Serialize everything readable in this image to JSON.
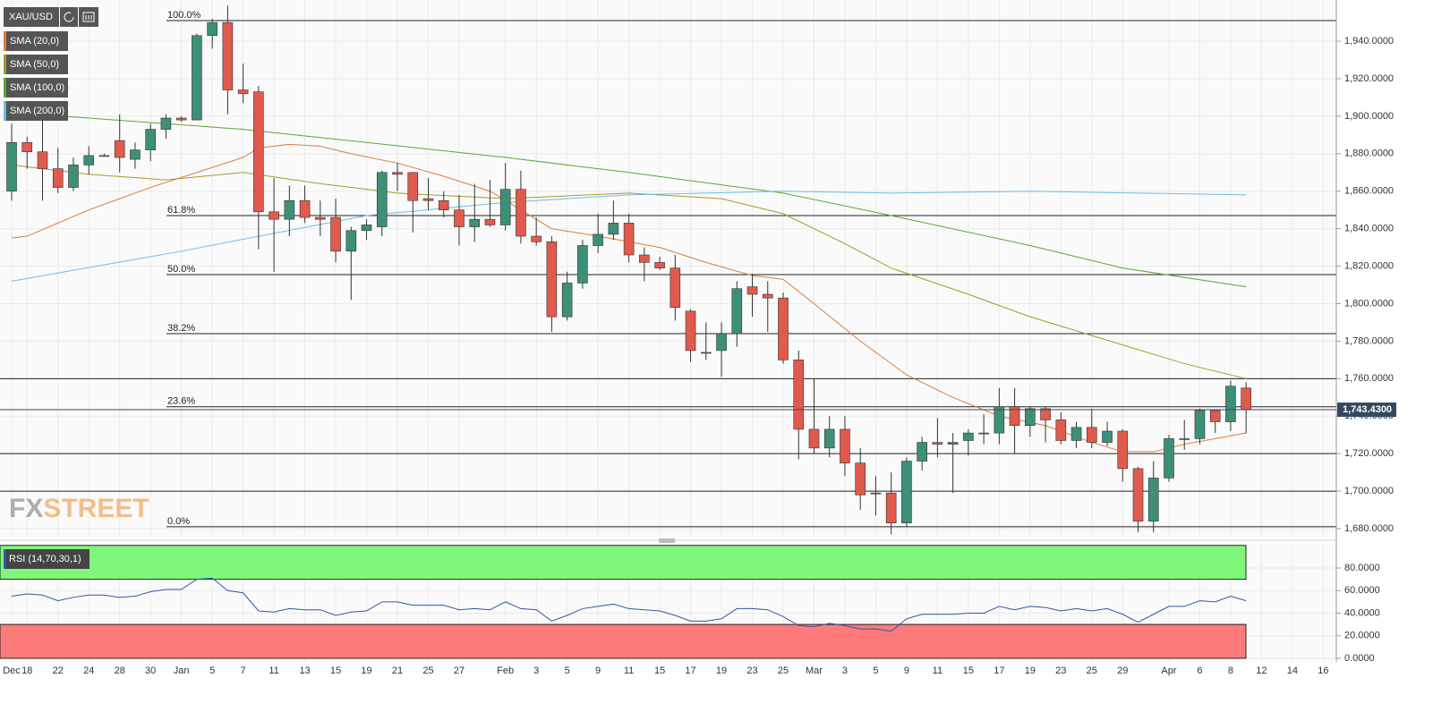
{
  "logo": {
    "fx": "FX",
    "street": "STREET"
  },
  "chart_data": [
    {
      "type": "candlestick",
      "title": "XAU/USD",
      "categories": [
        "Dec",
        "18",
        null,
        "22",
        null,
        "24",
        null,
        "28",
        null,
        "30",
        null,
        "Jan",
        null,
        "5",
        null,
        "7",
        null,
        "11",
        null,
        "13",
        null,
        "15",
        null,
        "19",
        null,
        "21",
        null,
        "25",
        null,
        "27",
        null,
        null,
        "Feb",
        null,
        "3",
        null,
        "5",
        null,
        "9",
        null,
        "11",
        null,
        "15",
        null,
        "17",
        null,
        "19",
        null,
        "23",
        null,
        "25",
        null,
        "Mar",
        null,
        "3",
        null,
        "5",
        null,
        "9",
        null,
        "11",
        null,
        "15",
        null,
        "17",
        null,
        "19",
        null,
        "23",
        null,
        "25",
        null,
        "29",
        null,
        null,
        "Apr",
        null,
        "6",
        null,
        "8",
        null,
        "12",
        null,
        "14",
        null,
        "16"
      ],
      "open": [
        1860,
        1886,
        1881,
        1872,
        1862,
        1874,
        1879,
        1887,
        1877,
        1882,
        1893,
        1899,
        1898,
        1943,
        1950,
        1914,
        1913,
        1849,
        1845,
        1855,
        1846,
        1846,
        1828,
        1839,
        1841,
        1870,
        1870,
        1856,
        1855,
        1850,
        1841,
        1845,
        1842,
        1861,
        1836,
        1833,
        1793,
        1811,
        1831,
        1837,
        1843,
        1826,
        1822,
        1819,
        1796,
        1774,
        1775,
        1784,
        1809,
        1805,
        1803,
        1770,
        1733,
        1723,
        1733,
        1715,
        1699,
        1699,
        1683,
        1716,
        1726,
        1725,
        1727,
        1731,
        1731,
        1745,
        1735,
        1744,
        1738,
        1727,
        1734,
        1726,
        1732,
        1712,
        1684,
        1707,
        1728,
        1728,
        1743,
        1737,
        1755,
        null,
        null,
        null,
        null,
        null
      ],
      "high": [
        1896,
        1889,
        1907,
        1883,
        1878,
        1884,
        1880,
        1901,
        1886,
        1896,
        1901,
        1900,
        1944,
        1952,
        1959,
        1928,
        1916,
        1867,
        1863,
        1863,
        1855,
        1856,
        1841,
        1845,
        1871,
        1875,
        1870,
        1867,
        1860,
        1858,
        1864,
        1866,
        1875,
        1871,
        1846,
        1836,
        1817,
        1834,
        1848,
        1855,
        1848,
        1830,
        1825,
        1826,
        1797,
        1790,
        1790,
        1812,
        1816,
        1812,
        1806,
        1775,
        1760,
        1740,
        1740,
        1723,
        1708,
        1710,
        1718,
        1729,
        1739,
        1731,
        1733,
        1741,
        1755,
        1755,
        1745,
        1745,
        1742,
        1737,
        1744,
        1737,
        1733,
        1713,
        1716,
        1730,
        1738,
        1744,
        1742,
        1759,
        1758,
        null,
        null,
        null,
        null,
        null
      ],
      "low": [
        1855,
        1872,
        1855,
        1859,
        1860,
        1869,
        1879,
        1870,
        1872,
        1876,
        1888,
        1897,
        1898,
        1936,
        1901,
        1907,
        1829,
        1817,
        1836,
        1843,
        1836,
        1822,
        1802,
        1834,
        1836,
        1860,
        1838,
        1850,
        1846,
        1831,
        1833,
        1841,
        1839,
        1832,
        1831,
        1785,
        1791,
        1808,
        1827,
        1834,
        1822,
        1812,
        1818,
        1791,
        1769,
        1770,
        1761,
        1777,
        1793,
        1785,
        1768,
        1717,
        1720,
        1718,
        1708,
        1690,
        1687,
        1677,
        1681,
        1711,
        1718,
        1699,
        1719,
        1725,
        1725,
        1720,
        1729,
        1726,
        1725,
        1723,
        1723,
        1724,
        1705,
        1678,
        1678,
        1705,
        1722,
        1725,
        1731,
        1732,
        1731,
        null,
        null,
        null,
        null,
        null
      ],
      "close": [
        1886,
        1881,
        1872,
        1862,
        1874,
        1879,
        1879,
        1878,
        1882,
        1893,
        1899,
        1898,
        1943,
        1950,
        1914,
        1912,
        1849,
        1845,
        1855,
        1846,
        1845,
        1828,
        1839,
        1842,
        1870,
        1869,
        1855,
        1855,
        1850,
        1841,
        1845,
        1842,
        1861,
        1836,
        1833,
        1793,
        1811,
        1831,
        1837,
        1843,
        1826,
        1822,
        1819,
        1798,
        1775,
        1774,
        1784,
        1808,
        1805,
        1803,
        1770,
        1733,
        1723,
        1733,
        1715,
        1698,
        1699,
        1683,
        1716,
        1726,
        1725,
        1726,
        1731,
        1731,
        1745,
        1735,
        1744,
        1738,
        1727,
        1734,
        1726,
        1732,
        1712,
        1684,
        1707,
        1728,
        1728,
        1743,
        1737,
        1756,
        1743.43,
        null,
        null,
        null,
        null,
        null
      ],
      "up_color": "#3e8f78",
      "down_color": "#e05a4e",
      "ylim": [
        1675.7,
        1959.6
      ],
      "yticks": [
        {
          "value": 1680,
          "label": "1,680.0000"
        },
        {
          "value": 1700,
          "label": "1,700.0000"
        },
        {
          "value": 1720,
          "label": "1,720.0000"
        },
        {
          "value": 1740,
          "label": "1,740.0000"
        },
        {
          "value": 1760,
          "label": "1,760.0000"
        },
        {
          "value": 1780,
          "label": "1,780.0000"
        },
        {
          "value": 1800,
          "label": "1,800.0000"
        },
        {
          "value": 1820,
          "label": "1,820.0000"
        },
        {
          "value": 1840,
          "label": "1,840.0000"
        },
        {
          "value": 1860,
          "label": "1,860.0000"
        },
        {
          "value": 1880,
          "label": "1,880.0000"
        },
        {
          "value": 1900,
          "label": "1,900.0000"
        },
        {
          "value": 1920,
          "label": "1,920.0000"
        },
        {
          "value": 1940,
          "label": "1,940.0000"
        }
      ],
      "grid": true,
      "series": [
        {
          "name": "SMA (20,0)",
          "color": "#e07b39",
          "x": [
            0,
            1,
            5,
            9,
            12,
            15,
            16,
            18,
            20,
            22,
            25,
            28,
            31,
            33,
            35,
            38,
            42,
            45,
            48,
            50,
            52,
            55,
            58,
            61,
            64,
            67,
            70,
            72,
            74,
            76,
            78,
            80
          ],
          "values": [
            1835,
            1836,
            1850,
            1862,
            1870,
            1878,
            1883,
            1885,
            1884,
            1880,
            1875,
            1868,
            1860,
            1850,
            1840,
            1836,
            1830,
            1822,
            1815,
            1813,
            1800,
            1780,
            1762,
            1750,
            1740,
            1735,
            1726,
            1721,
            1721,
            1725,
            1728,
            1731
          ]
        },
        {
          "name": "SMA (50,0)",
          "color": "#a59a27",
          "x": [
            0,
            5,
            10,
            15,
            20,
            25,
            32,
            40,
            46,
            50,
            54,
            57,
            62,
            66,
            72,
            76,
            80
          ],
          "values": [
            1874,
            1869,
            1866,
            1870,
            1864,
            1859,
            1856,
            1859,
            1856,
            1848,
            1832,
            1819,
            1805,
            1793,
            1778,
            1768,
            1760
          ]
        },
        {
          "name": "SMA (100,0)",
          "color": "#5aa832",
          "x": [
            0,
            15,
            23,
            32,
            40,
            50,
            57,
            66,
            72,
            80
          ],
          "values": [
            1902,
            1893,
            1886,
            1878,
            1870,
            1859,
            1847,
            1831,
            1819,
            1809
          ]
        },
        {
          "name": "SMA (200,0)",
          "color": "#6bbde6",
          "x": [
            0,
            11,
            23,
            32,
            40,
            50,
            57,
            66,
            80
          ],
          "values": [
            1812,
            1828,
            1847,
            1854,
            1858,
            1860,
            1859,
            1860,
            1858
          ]
        }
      ],
      "levels": [
        {
          "label": "100.0%",
          "value": 1951
        },
        {
          "label": "61.8%",
          "value": 1847
        },
        {
          "label": "50.0%",
          "value": 1815.5
        },
        {
          "label": "38.2%",
          "value": 1784
        },
        {
          "label": "23.6%",
          "value": 1745
        },
        {
          "label": "0.0%",
          "value": 1681
        }
      ],
      "lines": [
        1760,
        1720,
        1700
      ],
      "last": {
        "value": 1743.43,
        "label": "1,743.4300"
      }
    },
    {
      "type": "line",
      "series": [
        {
          "name": "RSI (14,70,30,1)",
          "color": "#3355aa",
          "values": [
            55,
            57,
            56,
            51,
            54,
            56,
            56,
            54,
            55,
            59,
            61,
            61,
            70,
            71,
            60,
            58,
            42,
            41,
            44,
            43,
            43,
            38,
            41,
            42,
            50,
            50,
            47,
            47,
            47,
            43,
            44,
            43,
            50,
            44,
            43,
            33,
            38,
            44,
            46,
            48,
            44,
            43,
            42,
            38,
            33,
            33,
            35,
            44,
            44,
            43,
            37,
            29,
            28,
            31,
            29,
            26,
            26,
            24,
            35,
            39,
            39,
            39,
            40,
            40,
            46,
            43,
            46,
            45,
            42,
            44,
            42,
            44,
            39,
            32,
            39,
            46,
            46,
            51,
            50,
            55,
            51
          ]
        }
      ],
      "ylim": [
        -3.2,
        101.4
      ],
      "yticks": [
        {
          "value": 0,
          "label": "0.0000"
        },
        {
          "value": 20,
          "label": "20.0000"
        },
        {
          "value": 40,
          "label": "40.0000"
        },
        {
          "value": 60,
          "label": "60.0000"
        },
        {
          "value": 80,
          "label": "80.0000"
        }
      ],
      "bands": [
        {
          "range": [
            70,
            100
          ],
          "color": "#7ef77a"
        },
        {
          "range": [
            0,
            30
          ],
          "color": "#ff7b7b"
        }
      ]
    }
  ]
}
